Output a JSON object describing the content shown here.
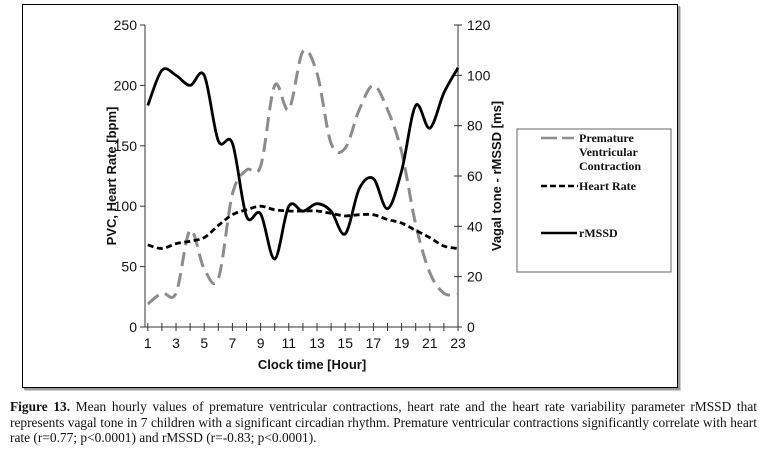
{
  "chart_data": {
    "type": "line",
    "x": [
      1,
      2,
      3,
      4,
      5,
      6,
      7,
      8,
      9,
      10,
      11,
      12,
      13,
      14,
      15,
      16,
      17,
      18,
      19,
      20,
      21,
      22,
      23
    ],
    "xlabel": "Clock time [Hour]",
    "x_tick_labels": [
      "1",
      "3",
      "5",
      "7",
      "9",
      "11",
      "13",
      "15",
      "17",
      "19",
      "21",
      "23"
    ],
    "ylabel_left": "PVC, Heart Rate [bpm]",
    "ylim_left": [
      0,
      250
    ],
    "y_ticks_left": [
      "0",
      "50",
      "100",
      "150",
      "200",
      "250"
    ],
    "ylabel_right": "Vagal tone - rMSSD [ms]",
    "ylim_right": [
      0,
      120
    ],
    "y_ticks_right": [
      "0",
      "20",
      "40",
      "60",
      "80",
      "100",
      "120"
    ],
    "grid": false,
    "legend_position": "right",
    "series": [
      {
        "name": "Premature Ventricular Contraction",
        "axis": "left",
        "style": "long-dash",
        "color": "#8c8c8c",
        "values": [
          19,
          28,
          28,
          80,
          48,
          40,
          110,
          130,
          133,
          200,
          180,
          228,
          210,
          152,
          148,
          180,
          200,
          180,
          145,
          85,
          45,
          28,
          27
        ]
      },
      {
        "name": "Heart Rate",
        "axis": "left",
        "style": "short-dash",
        "color": "#000000",
        "values": [
          68,
          65,
          69,
          71,
          74,
          84,
          93,
          97,
          100,
          97,
          96,
          96,
          96,
          94,
          92,
          93,
          93,
          89,
          86,
          80,
          74,
          67,
          65
        ]
      },
      {
        "name": "rMSSD",
        "axis": "right",
        "style": "solid",
        "color": "#000000",
        "values": [
          88,
          102,
          100,
          96,
          100,
          74,
          73,
          44,
          45,
          27,
          48,
          46,
          49,
          46,
          37,
          55,
          59,
          47,
          62,
          88,
          79,
          93,
          103
        ]
      }
    ]
  },
  "legend": {
    "items": [
      {
        "lines": [
          "Premature",
          "Ventricular",
          "Contraction"
        ]
      },
      {
        "lines": [
          "Heart Rate"
        ]
      },
      {
        "lines": [
          "rMSSD"
        ]
      }
    ]
  },
  "caption": {
    "label": "Figure 13.",
    "text": " Mean hourly values of premature ventricular contractions, heart rate and the heart rate variability parameter rMSSD that represents vagal tone in 7 children with a significant circadian rhythm. Premature ventricular contractions significantly correlate with heart rate (r=0.77; p<0.0001) and rMSSD (r=-0.83; p<0.0001)."
  }
}
